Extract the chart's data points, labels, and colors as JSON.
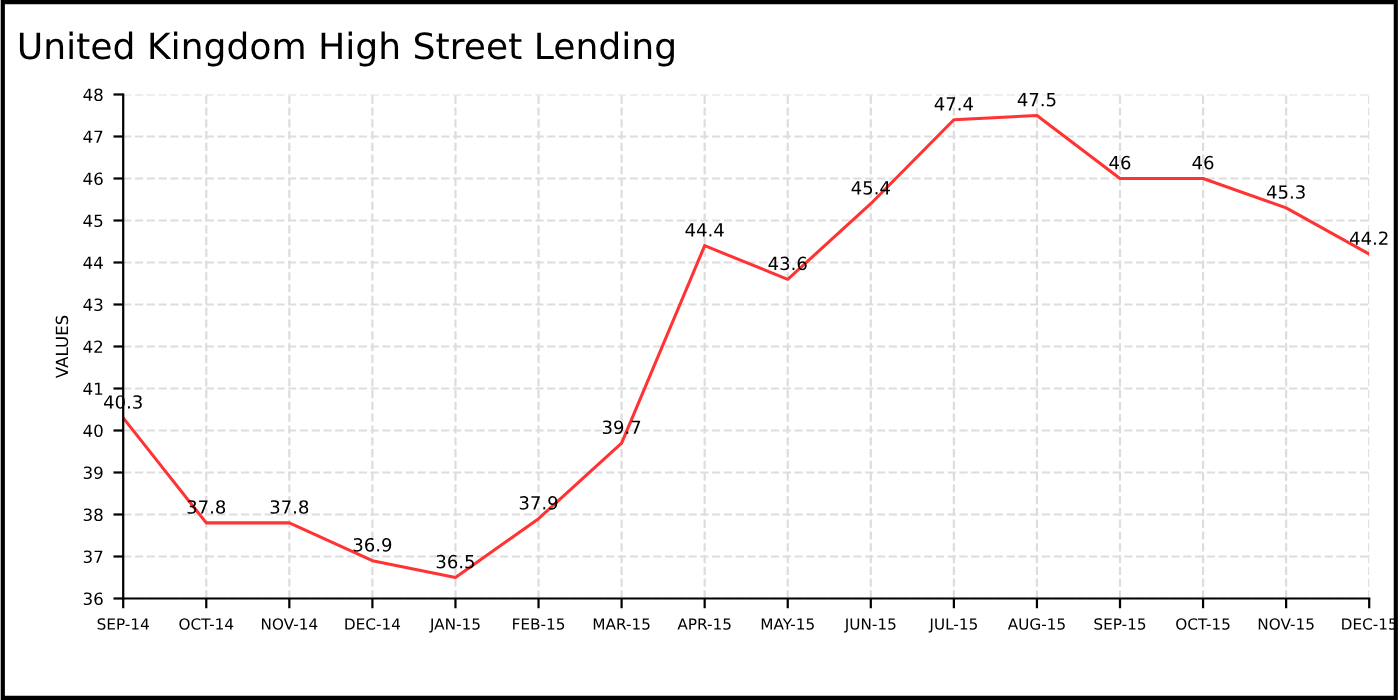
{
  "chart_data": {
    "type": "line",
    "title": "United Kingdom High Street Lending",
    "ylabel": "VALUES",
    "categories": [
      "SEP-14",
      "OCT-14",
      "NOV-14",
      "DEC-14",
      "JAN-15",
      "FEB-15",
      "MAR-15",
      "APR-15",
      "MAY-15",
      "JUN-15",
      "JUL-15",
      "AUG-15",
      "SEP-15",
      "OCT-15",
      "NOV-15",
      "DEC-15"
    ],
    "series": [
      {
        "color": "#ff3333",
        "values": [
          40.3,
          37.8,
          37.8,
          36.9,
          36.5,
          37.9,
          39.7,
          44.4,
          43.6,
          45.4,
          47.4,
          47.5,
          46,
          46,
          45.3,
          44.2
        ]
      }
    ],
    "ylim": [
      36,
      48
    ],
    "yticks": [
      36,
      37,
      38,
      39,
      40,
      41,
      42,
      43,
      44,
      45,
      46,
      47,
      48
    ],
    "grid": true,
    "data_labels": true,
    "marker": "none",
    "line_style": "solid"
  }
}
